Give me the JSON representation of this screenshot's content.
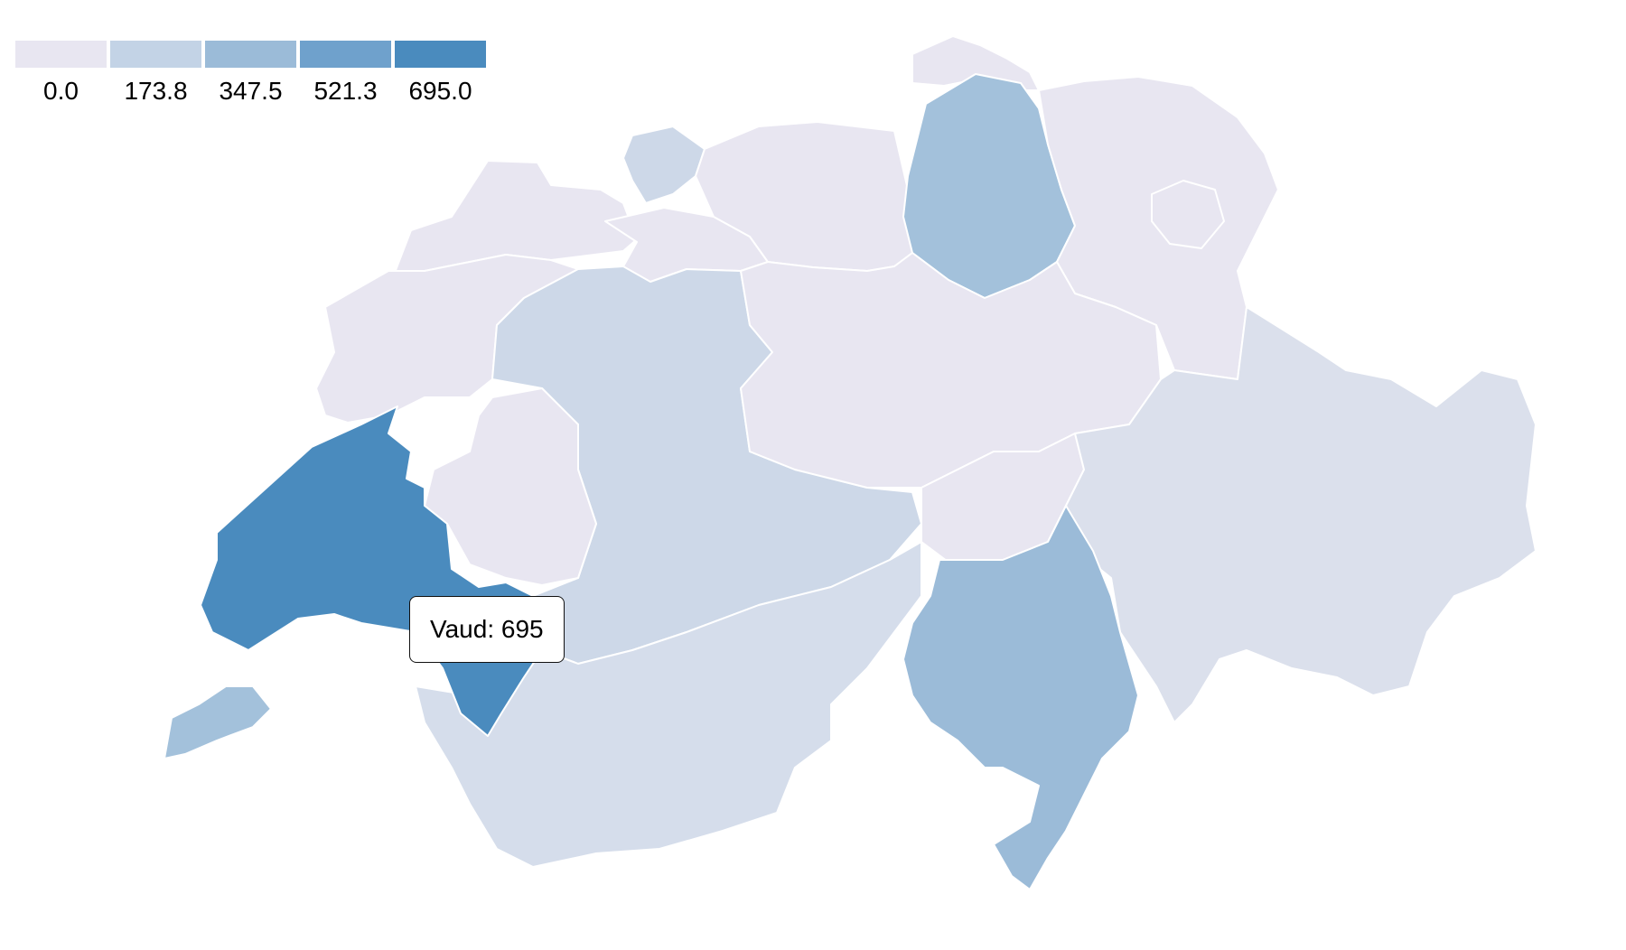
{
  "legend": {
    "items": [
      {
        "label": "0.0",
        "color": "#e8e6f1"
      },
      {
        "label": "173.8",
        "color": "#c3d3e6"
      },
      {
        "label": "347.5",
        "color": "#9bbbd8"
      },
      {
        "label": "521.3",
        "color": "#6fa1cc"
      },
      {
        "label": "695.0",
        "color": "#4a8bbe"
      }
    ]
  },
  "tooltip": {
    "text": "Vaud: 695"
  },
  "map": {
    "value_range": [
      0,
      695
    ],
    "regions": [
      {
        "id": "jura-north",
        "shade": "#e8e6f1"
      },
      {
        "id": "basel",
        "shade": "#cdd8e8"
      },
      {
        "id": "solothurn",
        "shade": "#e8e6f1"
      },
      {
        "id": "aargau",
        "shade": "#e8e6f1"
      },
      {
        "id": "schaffhausen",
        "shade": "#e8e6f1"
      },
      {
        "id": "zurich",
        "shade": "#a3c1db"
      },
      {
        "id": "st-gallen-thurgau",
        "shade": "#e8e6f1"
      },
      {
        "id": "appenzell",
        "shade": "#e8e6f1"
      },
      {
        "id": "jura-neuchatel",
        "shade": "#e8e6f1"
      },
      {
        "id": "bern",
        "shade": "#cdd8e8"
      },
      {
        "id": "fribourg",
        "shade": "#e8e6f1"
      },
      {
        "id": "central",
        "shade": "#e8e6f1"
      },
      {
        "id": "uri-glarus",
        "shade": "#e8e6f1"
      },
      {
        "id": "graubunden",
        "shade": "#dbe0ec"
      },
      {
        "id": "valais",
        "shade": "#d5ddeb"
      },
      {
        "id": "ticino",
        "shade": "#9bbbd8"
      },
      {
        "id": "vaud",
        "shade": "#4a8bbe"
      },
      {
        "id": "geneva",
        "shade": "#a3c1db"
      }
    ]
  }
}
